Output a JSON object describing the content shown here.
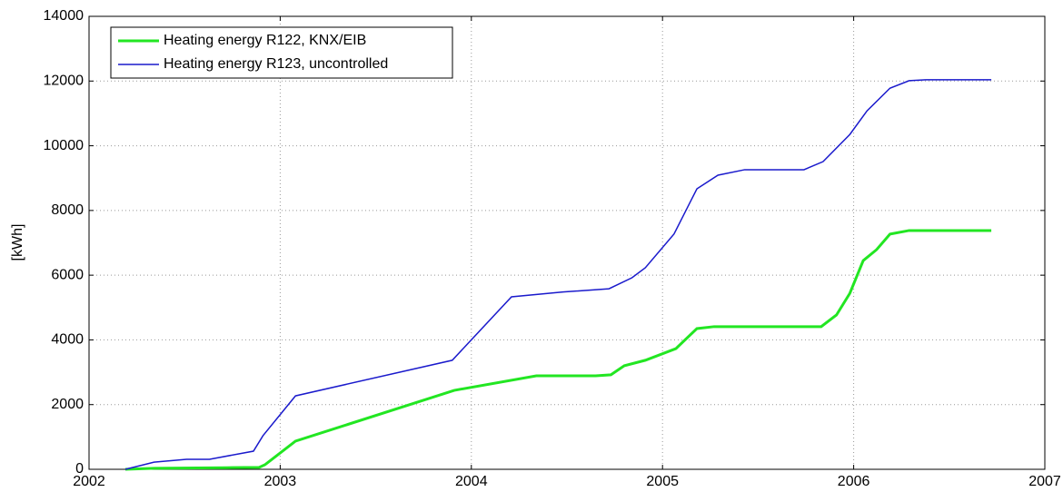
{
  "chart_data": {
    "type": "line",
    "ylabel": "[kWh]",
    "xlim": [
      2002,
      2007
    ],
    "xticks": [
      2002,
      2003,
      2004,
      2005,
      2006,
      2007
    ],
    "ylim": [
      0,
      14000
    ],
    "yticks": [
      0,
      2000,
      4000,
      6000,
      8000,
      10000,
      12000,
      14000
    ],
    "grid": true,
    "legend": "upper left",
    "series": [
      {
        "name": "Heating energy R122, KNX/EIB",
        "color": "#22e622",
        "x": [
          2002.19,
          2002.34,
          2002.72,
          2002.89,
          2002.92,
          2003.08,
          2003.91,
          2004.34,
          2004.65,
          2004.73,
          2004.8,
          2004.91,
          2005.07,
          2005.18,
          2005.27,
          2005.83,
          2005.91,
          2005.98,
          2006.05,
          2006.12,
          2006.19,
          2006.29,
          2006.72
        ],
        "values": [
          0,
          30,
          50,
          60,
          140,
          870,
          2440,
          2890,
          2890,
          2920,
          3200,
          3370,
          3730,
          4350,
          4410,
          4410,
          4770,
          5440,
          6450,
          6790,
          7270,
          7380,
          7380
        ]
      },
      {
        "name": "Heating energy R123, uncontrolled",
        "color": "#1a1acc",
        "x": [
          2002.19,
          2002.34,
          2002.51,
          2002.63,
          2002.86,
          2002.91,
          2003.08,
          2003.9,
          2004.21,
          2004.48,
          2004.72,
          2004.84,
          2004.91,
          2005.06,
          2005.18,
          2005.29,
          2005.43,
          2005.74,
          2005.84,
          2005.98,
          2006.07,
          2006.19,
          2006.29,
          2006.38,
          2006.72
        ],
        "values": [
          0,
          220,
          310,
          310,
          560,
          1040,
          2270,
          3370,
          5330,
          5480,
          5580,
          5920,
          6230,
          7270,
          8670,
          9090,
          9260,
          9260,
          9510,
          10350,
          11080,
          11780,
          12010,
          12040,
          12040
        ]
      }
    ]
  }
}
